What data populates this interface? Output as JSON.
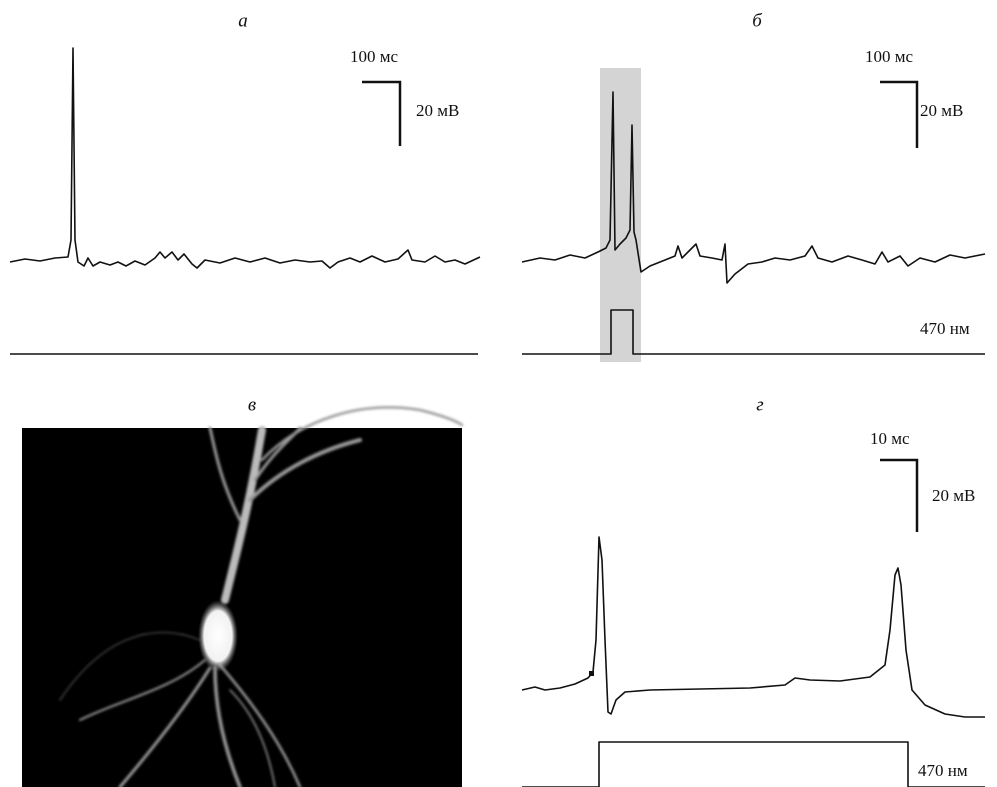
{
  "panels": [
    {
      "label": "а",
      "scale_time": "100 мс",
      "scale_voltage": "20 мВ"
    },
    {
      "label": "б",
      "scale_time": "100 мс",
      "scale_voltage": "20 мВ",
      "stimulus": "470 нм"
    },
    {
      "label": "в"
    },
    {
      "label": "г",
      "scale_time": "10 мс",
      "scale_voltage": "20 мВ",
      "stimulus": "470 нм"
    }
  ]
}
